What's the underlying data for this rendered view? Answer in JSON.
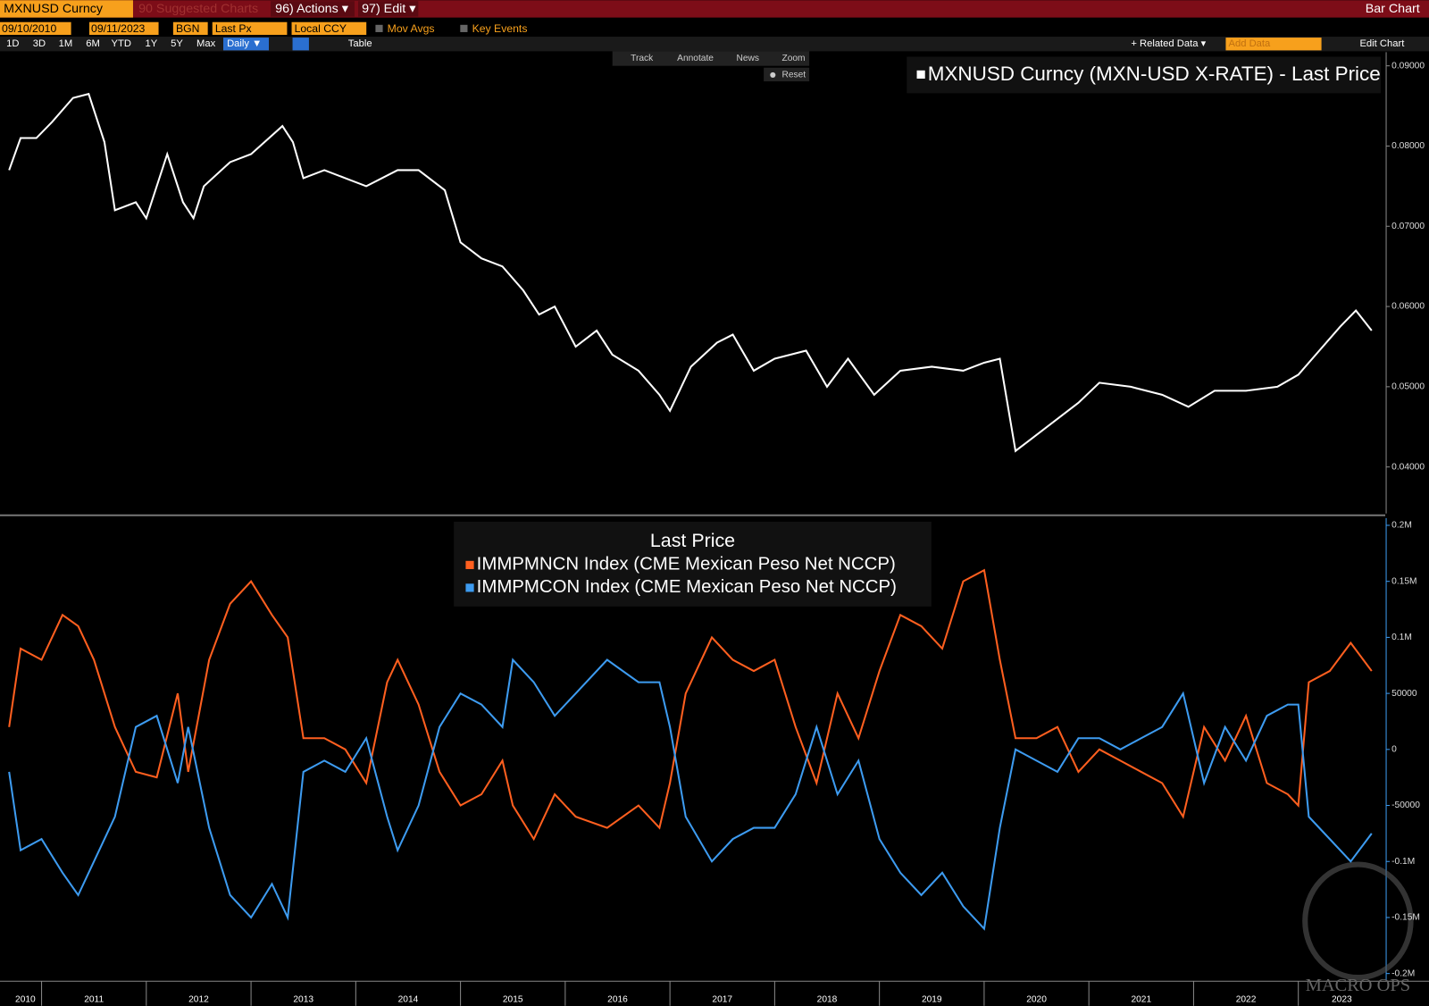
{
  "header": {
    "security": "MXNUSD Curncy",
    "suggested": "90 Suggested Charts",
    "actions": "96) Actions ▾",
    "edit": "97) Edit ▾",
    "chart_kind": "Bar Chart"
  },
  "controls": {
    "start": "09/10/2010",
    "end": "09/11/2023",
    "source": "BGN",
    "field": "Last Px",
    "currency": "Local CCY",
    "mov_avgs": "Mov Avgs",
    "key_events": "Key Events"
  },
  "periods": [
    "1D",
    "3D",
    "1M",
    "6M",
    "YTD",
    "1Y",
    "5Y",
    "Max"
  ],
  "frequency": "Daily ▼",
  "table": "Table",
  "related": "+ Related Data ▾",
  "add_data": "Add Data",
  "edit_chart": "Edit Chart",
  "chart_tools": [
    "Track",
    "Annotate",
    "News",
    "Zoom"
  ],
  "reset": "Reset",
  "watermark": "MACRO OPS",
  "chart_data": [
    {
      "type": "line",
      "xlim": [
        2010.69,
        2023.83
      ],
      "ylim": [
        0.0342,
        0.0917
      ],
      "yticks": [
        {
          "value": 0.04,
          "label": "0.04000"
        },
        {
          "value": 0.05,
          "label": "0.05000"
        },
        {
          "value": 0.06,
          "label": "0.06000"
        },
        {
          "value": 0.07,
          "label": "0.07000"
        },
        {
          "value": 0.08,
          "label": "0.08000"
        },
        {
          "value": 0.09,
          "label": "0.09000"
        }
      ],
      "x": [
        2010.69,
        2010.8,
        2010.95,
        2011.1,
        2011.3,
        2011.45,
        2011.6,
        2011.7,
        2011.9,
        2012.0,
        2012.2,
        2012.35,
        2012.45,
        2012.55,
        2012.8,
        2013.0,
        2013.3,
        2013.4,
        2013.5,
        2013.7,
        2013.9,
        2014.1,
        2014.4,
        2014.6,
        2014.85,
        2015.0,
        2015.2,
        2015.4,
        2015.6,
        2015.75,
        2015.9,
        2016.1,
        2016.3,
        2016.45,
        2016.7,
        2016.9,
        2017.0,
        2017.2,
        2017.45,
        2017.6,
        2017.8,
        2018.0,
        2018.3,
        2018.5,
        2018.7,
        2018.95,
        2019.2,
        2019.5,
        2019.8,
        2020.0,
        2020.15,
        2020.3,
        2020.4,
        2020.6,
        2020.9,
        2021.1,
        2021.4,
        2021.7,
        2021.95,
        2022.2,
        2022.5,
        2022.8,
        2023.0,
        2023.2,
        2023.4,
        2023.55,
        2023.7
      ],
      "series": [
        {
          "name": "MXNUSD Curncy (MXN-USD X-RATE) - Last Price",
          "color": "#ffffff",
          "values": [
            0.077,
            0.081,
            0.081,
            0.083,
            0.086,
            0.0865,
            0.0805,
            0.072,
            0.073,
            0.071,
            0.079,
            0.073,
            0.071,
            0.075,
            0.078,
            0.079,
            0.0825,
            0.0805,
            0.076,
            0.077,
            0.076,
            0.075,
            0.077,
            0.077,
            0.0745,
            0.068,
            0.066,
            0.065,
            0.062,
            0.059,
            0.06,
            0.055,
            0.057,
            0.054,
            0.052,
            0.049,
            0.047,
            0.0525,
            0.0555,
            0.0565,
            0.052,
            0.0535,
            0.0545,
            0.05,
            0.0535,
            0.049,
            0.052,
            0.0525,
            0.052,
            0.053,
            0.0535,
            0.042,
            0.043,
            0.045,
            0.048,
            0.0505,
            0.05,
            0.049,
            0.0475,
            0.0495,
            0.0495,
            0.05,
            0.0515,
            0.0545,
            0.0575,
            0.0595,
            0.057
          ]
        }
      ]
    },
    {
      "type": "line",
      "legend_title": "Last Price",
      "xlim": [
        2010.69,
        2023.83
      ],
      "ylim": [
        -206000,
        206500
      ],
      "yticks": [
        {
          "value": -200000,
          "label": "-0.2M"
        },
        {
          "value": -150000,
          "label": "-0.15M"
        },
        {
          "value": -100000,
          "label": "-0.1M"
        },
        -50000,
        0,
        50000,
        {
          "value": 100000,
          "label": "0.1M"
        },
        {
          "value": 150000,
          "label": "0.15M"
        },
        {
          "value": 200000,
          "label": "0.2M"
        }
      ],
      "xticks": [
        {
          "value": 2010,
          "label": "2010"
        },
        {
          "value": 2011,
          "label": "2011"
        },
        {
          "value": 2012,
          "label": "2012"
        },
        {
          "value": 2013,
          "label": "2013"
        },
        {
          "value": 2014,
          "label": "2014"
        },
        {
          "value": 2015,
          "label": "2015"
        },
        {
          "value": 2016,
          "label": "2016"
        },
        {
          "value": 2017,
          "label": "2017"
        },
        {
          "value": 2018,
          "label": "2018"
        },
        {
          "value": 2019,
          "label": "2019"
        },
        {
          "value": 2020,
          "label": "2020"
        },
        {
          "value": 2021,
          "label": "2021"
        },
        {
          "value": 2022,
          "label": "2022"
        },
        {
          "value": 2023,
          "label": "2023"
        }
      ],
      "x": [
        2010.69,
        2010.8,
        2011.0,
        2011.2,
        2011.35,
        2011.5,
        2011.7,
        2011.9,
        2012.1,
        2012.3,
        2012.4,
        2012.6,
        2012.8,
        2013.0,
        2013.2,
        2013.35,
        2013.5,
        2013.7,
        2013.9,
        2014.1,
        2014.3,
        2014.4,
        2014.6,
        2014.8,
        2015.0,
        2015.2,
        2015.4,
        2015.5,
        2015.7,
        2015.9,
        2016.1,
        2016.4,
        2016.7,
        2016.9,
        2017.0,
        2017.15,
        2017.4,
        2017.6,
        2017.8,
        2018.0,
        2018.2,
        2018.4,
        2018.6,
        2018.8,
        2019.0,
        2019.2,
        2019.4,
        2019.6,
        2019.8,
        2020.0,
        2020.15,
        2020.3,
        2020.5,
        2020.7,
        2020.9,
        2021.1,
        2021.3,
        2021.5,
        2021.7,
        2021.9,
        2022.1,
        2022.3,
        2022.5,
        2022.7,
        2022.9,
        2023.0,
        2023.1,
        2023.3,
        2023.5,
        2023.7
      ],
      "series": [
        {
          "name": "IMMPMNCN Index (CME Mexican Peso Net NCCP)",
          "color": "#ff5f1f",
          "values": [
            20000,
            90000,
            80000,
            120000,
            110000,
            80000,
            20000,
            -20000,
            -25000,
            50000,
            -20000,
            80000,
            130000,
            150000,
            120000,
            100000,
            10000,
            10000,
            0,
            -30000,
            60000,
            80000,
            40000,
            -20000,
            -50000,
            -40000,
            -10000,
            -50000,
            -80000,
            -40000,
            -60000,
            -70000,
            -50000,
            -70000,
            -30000,
            50000,
            100000,
            80000,
            70000,
            80000,
            20000,
            -30000,
            50000,
            10000,
            70000,
            120000,
            110000,
            90000,
            150000,
            160000,
            80000,
            10000,
            10000,
            20000,
            -20000,
            0,
            -10000,
            -20000,
            -30000,
            -60000,
            20000,
            -10000,
            30000,
            -30000,
            -40000,
            -50000,
            60000,
            70000,
            95000,
            70000
          ]
        },
        {
          "name": "IMMPMCON Index (CME Mexican Peso Net NCCP)",
          "color": "#3d9bf0",
          "values": [
            -20000,
            -90000,
            -80000,
            -110000,
            -130000,
            -100000,
            -60000,
            20000,
            30000,
            -30000,
            20000,
            -70000,
            -130000,
            -150000,
            -120000,
            -150000,
            -20000,
            -10000,
            -20000,
            10000,
            -60000,
            -90000,
            -50000,
            20000,
            50000,
            40000,
            20000,
            80000,
            60000,
            30000,
            50000,
            80000,
            60000,
            60000,
            20000,
            -60000,
            -100000,
            -80000,
            -70000,
            -70000,
            -40000,
            20000,
            -40000,
            -10000,
            -80000,
            -110000,
            -130000,
            -110000,
            -140000,
            -160000,
            -70000,
            0,
            -10000,
            -20000,
            10000,
            10000,
            0,
            10000,
            20000,
            50000,
            -30000,
            20000,
            -10000,
            30000,
            40000,
            40000,
            -60000,
            -80000,
            -100000,
            -75000
          ]
        }
      ]
    }
  ]
}
